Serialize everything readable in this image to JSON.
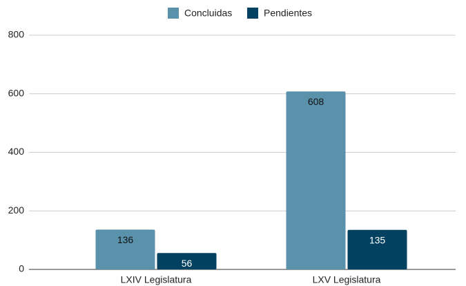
{
  "chart_data": {
    "type": "bar",
    "categories": [
      "LXIV Legislatura",
      "LXV Legislatura"
    ],
    "series": [
      {
        "name": "Concluidas",
        "color": "#5a91ab",
        "values": [
          136,
          608
        ]
      },
      {
        "name": "Pendientes",
        "color": "#024160",
        "values": [
          56,
          135
        ]
      }
    ],
    "ylim": [
      0,
      800
    ],
    "yticks": [
      0,
      200,
      400,
      600,
      800
    ],
    "grid": true,
    "legend": "top"
  }
}
